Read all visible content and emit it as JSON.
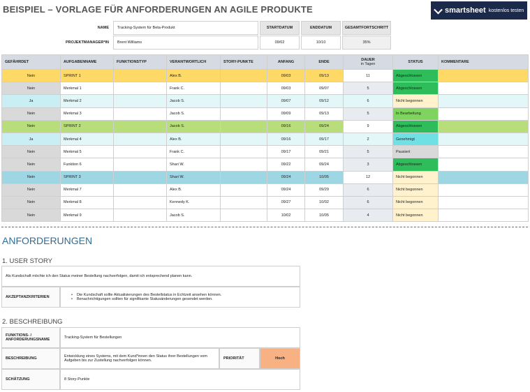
{
  "title": "BEISPIEL – VORLAGE FÜR ANFORDERUNGEN AN AGILE PRODUKTE",
  "brand": {
    "name": "smartsheet",
    "cta": "kostenlos testen"
  },
  "meta": {
    "name_label": "NAME",
    "name_value": "Tracking-System für Beta-Produkt",
    "pm_label": "PROJEKTMANAGER*IN",
    "pm_value": "Brent Williams",
    "start_label": "STARTDATUM",
    "start_value": "09/02",
    "end_label": "ENDDATUM",
    "end_value": "10/10",
    "progress_label": "GESAMTFORTSCHRITT",
    "progress_value": "35%"
  },
  "table": {
    "headers": {
      "risk": "GEFÄHRDET",
      "task": "AUFGABENNAME",
      "type": "FUNKTIONSTYP",
      "owner": "VERANTWORTLICH",
      "points": "STORY-PUNKTE",
      "start": "ANFANG",
      "end": "ENDE",
      "duration": "DAUER",
      "duration_sub": "in Tagen",
      "status": "STATUS",
      "comments": "KOMMENTARE"
    },
    "rows": [
      {
        "risk": "Nein",
        "task": "SPRINT 1",
        "owner": "Alex B.",
        "start": "09/03",
        "end": "09/13",
        "duration": "11",
        "status": "Abgeschlossen"
      },
      {
        "risk": "Nein",
        "task": "Merkmal 1",
        "owner": "Frank C.",
        "start": "09/03",
        "end": "09/07",
        "duration": "5",
        "status": "Abgeschlossen"
      },
      {
        "risk": "Ja",
        "task": "Merkmal 2",
        "owner": "Jacob S.",
        "start": "09/07",
        "end": "09/12",
        "duration": "6",
        "status": "Nicht begonnen"
      },
      {
        "risk": "Nein",
        "task": "Merkmal 3",
        "owner": "Jacob S.",
        "start": "09/09",
        "end": "09/13",
        "duration": "5",
        "status": "In Bearbeitung"
      },
      {
        "risk": "Nein",
        "task": "SPRINT 2",
        "owner": "Jacob S.",
        "start": "09/16",
        "end": "09/24",
        "duration": "9",
        "status": "Abgeschlossen"
      },
      {
        "risk": "Ja",
        "task": "Merkmal 4",
        "owner": "Alex B.",
        "start": "09/16",
        "end": "09/17",
        "duration": "2",
        "status": "Genehmigt"
      },
      {
        "risk": "Nein",
        "task": "Merkmal 5",
        "owner": "Frank C.",
        "start": "09/17",
        "end": "09/21",
        "duration": "5",
        "status": "Pausiert"
      },
      {
        "risk": "Nein",
        "task": "Funktion 6",
        "owner": "Shari W.",
        "start": "09/22",
        "end": "09/24",
        "duration": "3",
        "status": "Abgeschlossen"
      },
      {
        "risk": "Nein",
        "task": "SPRINT 3",
        "owner": "Shari W.",
        "start": "09/24",
        "end": "10/05",
        "duration": "12",
        "status": "Nicht begonnen"
      },
      {
        "risk": "Nein",
        "task": "Merkmal 7",
        "owner": "Alex B.",
        "start": "09/24",
        "end": "09/29",
        "duration": "6",
        "status": "Nicht begonnen"
      },
      {
        "risk": "Nein",
        "task": "Merkmal 8",
        "owner": "Kennedy K.",
        "start": "09/27",
        "end": "10/02",
        "duration": "6",
        "status": "Nicht begonnen"
      },
      {
        "risk": "Nein",
        "task": "Merkmal 9",
        "owner": "Jacob S.",
        "start": "10/02",
        "end": "10/05",
        "duration": "4",
        "status": "Nicht begonnen"
      }
    ]
  },
  "requirements": {
    "heading": "ANFORDERUNGEN",
    "user_story": {
      "heading": "1. USER STORY",
      "text": "Als Kundschaft möchte ich den Status meiner Bestellung nachverfolgen, damit ich entsprechend planen kann.",
      "criteria_label": "AKZEPTANZKRITERIEN",
      "criteria": [
        "Die Kundschaft sollte Aktualisierungen des Bestellstatus in Echtzeit ansehen können.",
        "Benachrichtigungen sollten für signifikante Statusänderungen gesendet werden."
      ]
    },
    "description": {
      "heading": "2. BESCHREIBUNG",
      "fname_label": "FUNKTIONS- / ANFORDERUNGSNAME",
      "fname_value": "Tracking-System für Bestellungen",
      "desc_label": "BESCHREIBUNG",
      "desc_value": "Entwicklung eines Systems, mit dem Kund*innen den Status ihrer Bestellungen vom Aufgeben bis zur Zustellung nachverfolgen können.",
      "prio_label": "PRIORITÄT",
      "prio_value": "Hoch",
      "estimate_label": "SCHÄTZUNG",
      "estimate_value": "8 Story-Punkte"
    }
  }
}
